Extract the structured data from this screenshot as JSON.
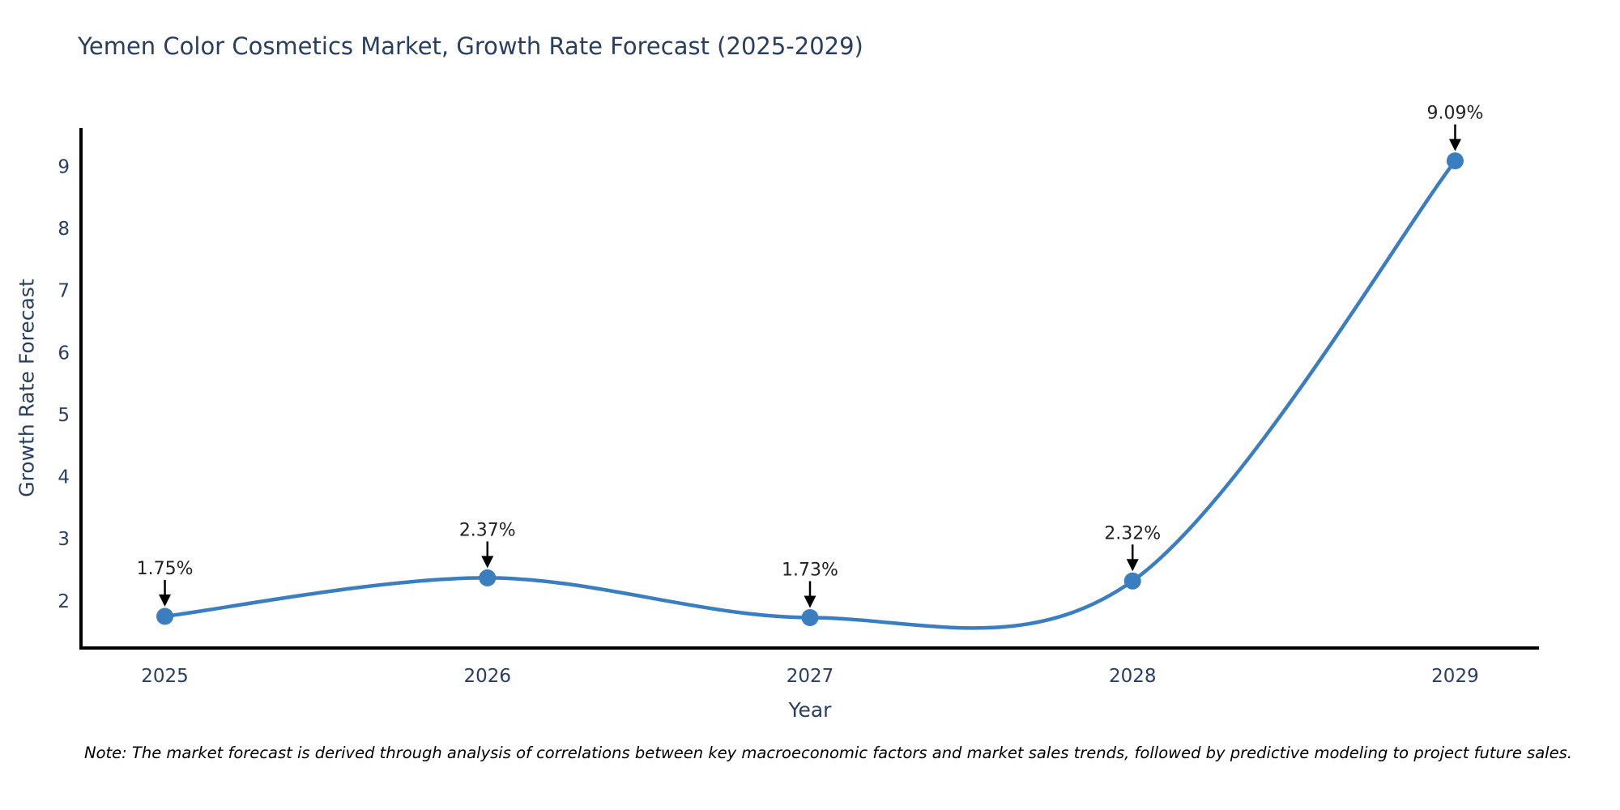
{
  "title": "Yemen Color Cosmetics Market, Growth Rate Forecast (2025-2029)",
  "note": "Note: The market forecast is derived through analysis of correlations between key macroeconomic factors and market sales trends, followed by predictive modeling to project future sales.",
  "chart_data": {
    "type": "line",
    "title": "Yemen Color Cosmetics Market, Growth Rate Forecast (2025-2029)",
    "xlabel": "Year",
    "ylabel": "Growth Rate Forecast",
    "x": [
      2025,
      2026,
      2027,
      2028,
      2029
    ],
    "categories": [
      "2025",
      "2026",
      "2027",
      "2028",
      "2029"
    ],
    "values": [
      1.75,
      2.37,
      1.73,
      2.32,
      9.09
    ],
    "point_labels": [
      "1.75%",
      "2.37%",
      "1.73%",
      "2.32%",
      "9.09%"
    ],
    "yticks": [
      2,
      3,
      4,
      5,
      6,
      7,
      8,
      9
    ],
    "ylim": [
      1.24,
      9.62
    ],
    "xlim": [
      2024.74,
      2029.26
    ],
    "grid": false,
    "legend": "none",
    "line_shape": "spline",
    "marker_style": "circle",
    "annotation_arrow": "down",
    "colors": {
      "line": "#3a7ebf",
      "marker": "#3a7ebf",
      "axis_line": "#000000",
      "title_text": "#2a3f5f",
      "tick_text": "#2a3f5f",
      "annotation_text": "#222222",
      "annotation_arrow": "#000000",
      "note_text": "#000000",
      "background": "#ffffff"
    }
  }
}
